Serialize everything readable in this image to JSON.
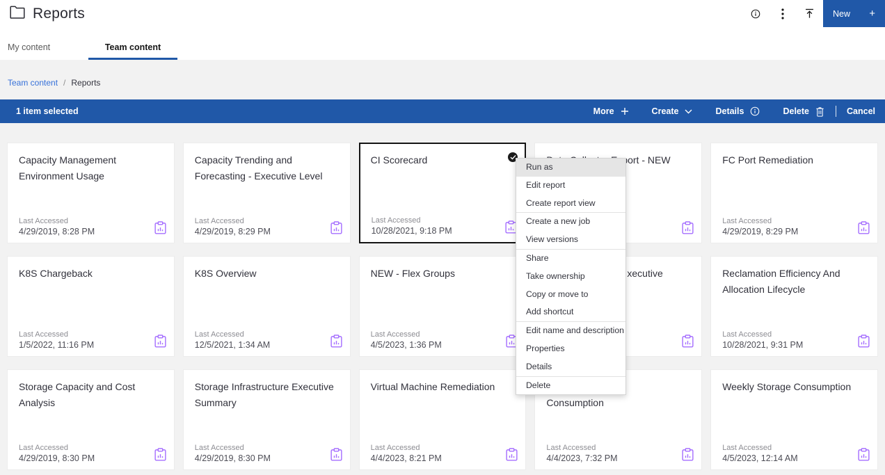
{
  "header": {
    "title": "Reports",
    "icons": [
      {
        "name": "info"
      },
      {
        "name": "overflow-menu"
      },
      {
        "name": "upload"
      }
    ],
    "new_button": {
      "label": "New",
      "plus": "+"
    }
  },
  "tabs": [
    {
      "label": "My content",
      "active": false
    },
    {
      "label": "Team content",
      "active": true
    }
  ],
  "breadcrumb": {
    "items": [
      "Team content",
      "Reports"
    ],
    "separator": "/"
  },
  "selection_bar": {
    "status": "1 item selected",
    "actions": [
      {
        "label": "More",
        "icon": "plus"
      },
      {
        "label": "Create",
        "icon": "chevron-down"
      },
      {
        "label": "Details",
        "icon": "info"
      },
      {
        "label": "Delete",
        "icon": "trash"
      }
    ],
    "cancel_label": "Cancel"
  },
  "labels": {
    "last_accessed": "Last Accessed"
  },
  "accent_colors": {
    "primary_blue": "#2058a8",
    "report_icon_purple": "#a56eff",
    "link_blue": "#3671d9"
  },
  "cards": [
    {
      "title": "Capacity Management Environment Usage",
      "last_accessed": "4/29/2019, 8:28 PM",
      "display": "normal",
      "selected": false
    },
    {
      "title": "Capacity Trending and Forecasting - Executive Level",
      "last_accessed": "4/29/2019, 8:29 PM",
      "display": "normal",
      "selected": false
    },
    {
      "title": "CI Scorecard",
      "last_accessed": "10/28/2021, 9:18 PM",
      "display": "normal",
      "selected": true
    },
    {
      "title": "Data Collector Export - NEW",
      "last_accessed": "",
      "display": "normal",
      "selected": false
    },
    {
      "title": "FC Port Remediation",
      "last_accessed": "4/29/2019, 8:29 PM",
      "display": "normal",
      "selected": false
    },
    {
      "title": "K8S Chargeback",
      "last_accessed": "1/5/2022, 11:16 PM",
      "display": "normal",
      "selected": false
    },
    {
      "title": "K8S Overview",
      "last_accessed": "12/5/2021, 1:34 AM",
      "display": "normal",
      "selected": false
    },
    {
      "title": "NEW - Flex Groups",
      "last_accessed": "4/5/2023, 1:36 PM",
      "display": "normal",
      "selected": false
    },
    {
      "title": "xecutive",
      "last_accessed": "",
      "display": "fragment_right",
      "selected": false
    },
    {
      "title": "Reclamation Efficiency And Allocation Lifecycle",
      "last_accessed": "10/28/2021, 9:31 PM",
      "display": "normal",
      "selected": false
    },
    {
      "title": "Storage Capacity and Cost Analysis",
      "last_accessed": "4/29/2019, 8:30 PM",
      "display": "normal",
      "selected": false
    },
    {
      "title": "Storage Infrastructure Executive Summary",
      "last_accessed": "4/29/2019, 8:30 PM",
      "display": "normal",
      "selected": false
    },
    {
      "title": "Virtual Machine Remediation",
      "last_accessed": "4/4/2023, 8:21 PM",
      "display": "normal",
      "selected": false
    },
    {
      "title": "Consumption",
      "last_accessed": "4/4/2023, 7:32 PM",
      "display": "second_line_only",
      "selected": false
    },
    {
      "title": "Weekly Storage Consumption",
      "last_accessed": "4/5/2023, 12:14 AM",
      "display": "normal",
      "selected": false
    }
  ],
  "context_menu": {
    "hovered_item": "Run as",
    "groups": [
      [
        "Run as",
        "Edit report",
        "Create report view"
      ],
      [
        "Create a new job",
        "View versions"
      ],
      [
        "Share",
        "Take ownership",
        "Copy or move to",
        "Add shortcut"
      ],
      [
        "Edit name and description",
        "Properties",
        "Details"
      ],
      [
        "Delete"
      ]
    ]
  }
}
